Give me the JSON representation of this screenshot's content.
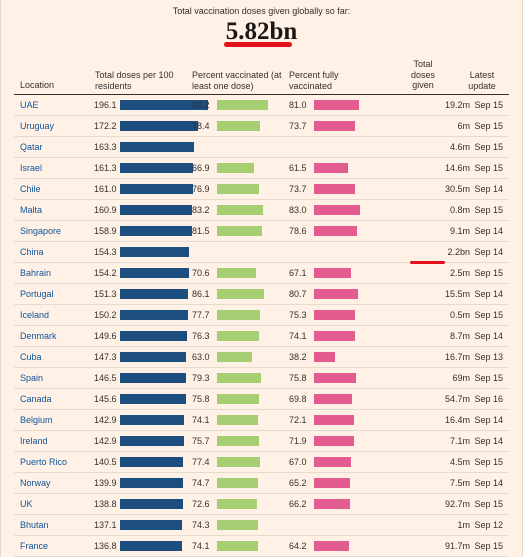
{
  "header": {
    "headline": "Total vaccination doses given globally so far:",
    "total": "5.82bn"
  },
  "colors": {
    "background": "#fff1e5",
    "doses_bar": "#1c4e80",
    "at_least_one_bar": "#a6ce73",
    "fully_bar": "#e35b8f",
    "location_text": "#0f5499",
    "highlight": "#e3111c"
  },
  "chart_data": {
    "type": "table",
    "columns": {
      "location": "Location",
      "doses": "Total doses per 100 residents",
      "at_least_one": "Percent vaccinated (at least one dose)",
      "fully": "Percent fully vaccinated",
      "total": "Total doses given",
      "updated": "Latest update"
    },
    "doses_scale_max": 200,
    "percent_scale_max": 100,
    "rows": [
      {
        "location": "UAE",
        "doses": "196.1",
        "at_least_one": "92.2",
        "fully": "81.0",
        "total": "19.2m",
        "updated": "Sep 15"
      },
      {
        "location": "Uruguay",
        "doses": "172.2",
        "at_least_one": "78.4",
        "fully": "73.7",
        "total": "6m",
        "updated": "Sep 15"
      },
      {
        "location": "Qatar",
        "doses": "163.3",
        "at_least_one": "",
        "fully": "",
        "total": "4.6m",
        "updated": "Sep 15"
      },
      {
        "location": "Israel",
        "doses": "161.3",
        "at_least_one": "66.9",
        "fully": "61.5",
        "total": "14.6m",
        "updated": "Sep 15"
      },
      {
        "location": "Chile",
        "doses": "161.0",
        "at_least_one": "76.9",
        "fully": "73.7",
        "total": "30.5m",
        "updated": "Sep 14"
      },
      {
        "location": "Malta",
        "doses": "160.9",
        "at_least_one": "83.2",
        "fully": "83.0",
        "total": "0.8m",
        "updated": "Sep 15"
      },
      {
        "location": "Singapore",
        "doses": "158.9",
        "at_least_one": "81.5",
        "fully": "78.6",
        "total": "9.1m",
        "updated": "Sep 14"
      },
      {
        "location": "China",
        "doses": "154.3",
        "at_least_one": "",
        "fully": "",
        "total": "2.2bn",
        "updated": "Sep 14"
      },
      {
        "location": "Bahrain",
        "doses": "154.2",
        "at_least_one": "70.6",
        "fully": "67.1",
        "total": "2.5m",
        "updated": "Sep 15"
      },
      {
        "location": "Portugal",
        "doses": "151.3",
        "at_least_one": "86.1",
        "fully": "80.7",
        "total": "15.5m",
        "updated": "Sep 14"
      },
      {
        "location": "Iceland",
        "doses": "150.2",
        "at_least_one": "77.7",
        "fully": "75.3",
        "total": "0.5m",
        "updated": "Sep 15"
      },
      {
        "location": "Denmark",
        "doses": "149.6",
        "at_least_one": "76.3",
        "fully": "74.1",
        "total": "8.7m",
        "updated": "Sep 14"
      },
      {
        "location": "Cuba",
        "doses": "147.3",
        "at_least_one": "63.0",
        "fully": "38.2",
        "total": "16.7m",
        "updated": "Sep 13"
      },
      {
        "location": "Spain",
        "doses": "146.5",
        "at_least_one": "79.3",
        "fully": "75.8",
        "total": "69m",
        "updated": "Sep 15"
      },
      {
        "location": "Canada",
        "doses": "145.6",
        "at_least_one": "75.8",
        "fully": "69.8",
        "total": "54.7m",
        "updated": "Sep 16"
      },
      {
        "location": "Belgium",
        "doses": "142.9",
        "at_least_one": "74.1",
        "fully": "72.1",
        "total": "16.4m",
        "updated": "Sep 14"
      },
      {
        "location": "Ireland",
        "doses": "142.9",
        "at_least_one": "75.7",
        "fully": "71.9",
        "total": "7.1m",
        "updated": "Sep 14"
      },
      {
        "location": "Puerto Rico",
        "doses": "140.5",
        "at_least_one": "77.4",
        "fully": "67.0",
        "total": "4.5m",
        "updated": "Sep 15"
      },
      {
        "location": "Norway",
        "doses": "139.9",
        "at_least_one": "74.7",
        "fully": "65.2",
        "total": "7.5m",
        "updated": "Sep 14"
      },
      {
        "location": "UK",
        "doses": "138.8",
        "at_least_one": "72.6",
        "fully": "66.2",
        "total": "92.7m",
        "updated": "Sep 15"
      },
      {
        "location": "Bhutan",
        "doses": "137.1",
        "at_least_one": "74.3",
        "fully": "",
        "total": "1m",
        "updated": "Sep 12"
      },
      {
        "location": "France",
        "doses": "136.8",
        "at_least_one": "74.1",
        "fully": "64.2",
        "total": "91.7m",
        "updated": "Sep 15"
      }
    ]
  }
}
